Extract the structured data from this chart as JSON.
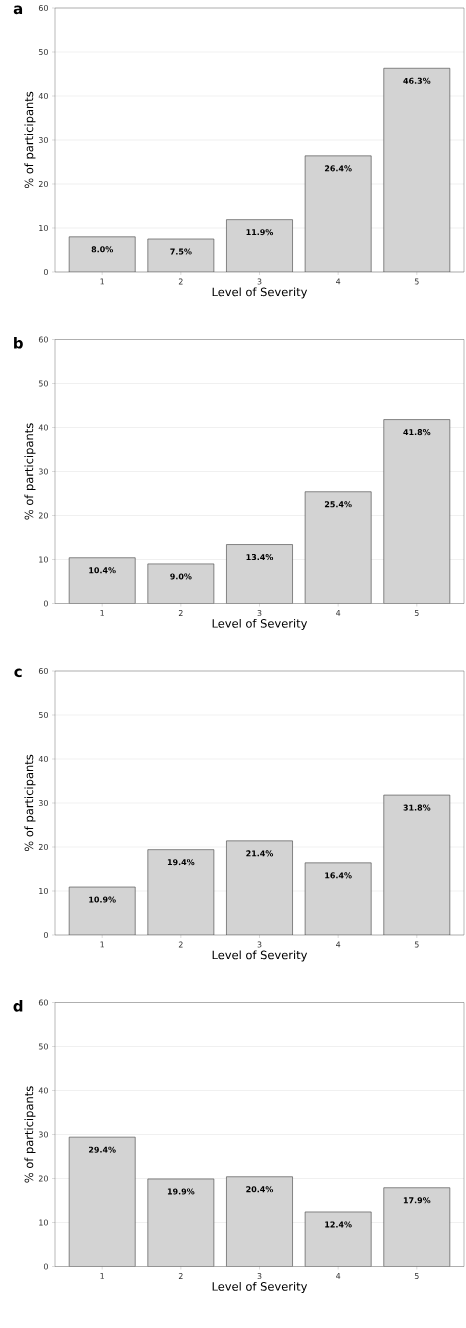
{
  "chart_data": [
    {
      "type": "bar",
      "title": "a",
      "xlabel": "Level of Severity",
      "ylabel": "% of participants",
      "categories": [
        "1",
        "2",
        "3",
        "4",
        "5"
      ],
      "values": [
        8.0,
        7.5,
        11.9,
        26.4,
        46.3
      ],
      "value_labels": [
        "8.0%",
        "7.5%",
        "11.9%",
        "26.4%",
        "46.3%"
      ],
      "color": "#d3d3d3",
      "ylim": [
        0,
        60
      ],
      "yticks": [
        0,
        10,
        20,
        30,
        40,
        50,
        60
      ],
      "grid": "y"
    },
    {
      "type": "bar",
      "title": "b",
      "xlabel": "Level of Severity",
      "ylabel": "% of participants",
      "categories": [
        "1",
        "2",
        "3",
        "4",
        "5"
      ],
      "values": [
        10.4,
        9.0,
        13.4,
        25.4,
        41.8
      ],
      "value_labels": [
        "10.4%",
        "9.0%",
        "13.4%",
        "25.4%",
        "41.8%"
      ],
      "color": "#d3d3d3",
      "ylim": [
        0,
        60
      ],
      "yticks": [
        0,
        10,
        20,
        30,
        40,
        50,
        60
      ],
      "grid": "y"
    },
    {
      "type": "bar",
      "title": "c",
      "xlabel": "Level of Severity",
      "ylabel": "% of participants",
      "categories": [
        "1",
        "2",
        "3",
        "4",
        "5"
      ],
      "values": [
        10.9,
        19.4,
        21.4,
        16.4,
        31.8
      ],
      "value_labels": [
        "10.9%",
        "19.4%",
        "21.4%",
        "16.4%",
        "31.8%"
      ],
      "color": "#d3d3d3",
      "ylim": [
        0,
        60
      ],
      "yticks": [
        0,
        10,
        20,
        30,
        40,
        50,
        60
      ],
      "grid": "y"
    },
    {
      "type": "bar",
      "title": "d",
      "xlabel": "Level of Severity",
      "ylabel": "% of participants",
      "categories": [
        "1",
        "2",
        "3",
        "4",
        "5"
      ],
      "values": [
        29.4,
        19.9,
        20.4,
        12.4,
        17.9
      ],
      "value_labels": [
        "29.4%",
        "19.9%",
        "20.4%",
        "12.4%",
        "17.9%"
      ],
      "color": "#d3d3d3",
      "ylim": [
        0,
        60
      ],
      "yticks": [
        0,
        10,
        20,
        30,
        40,
        50,
        60
      ],
      "grid": "y"
    }
  ]
}
